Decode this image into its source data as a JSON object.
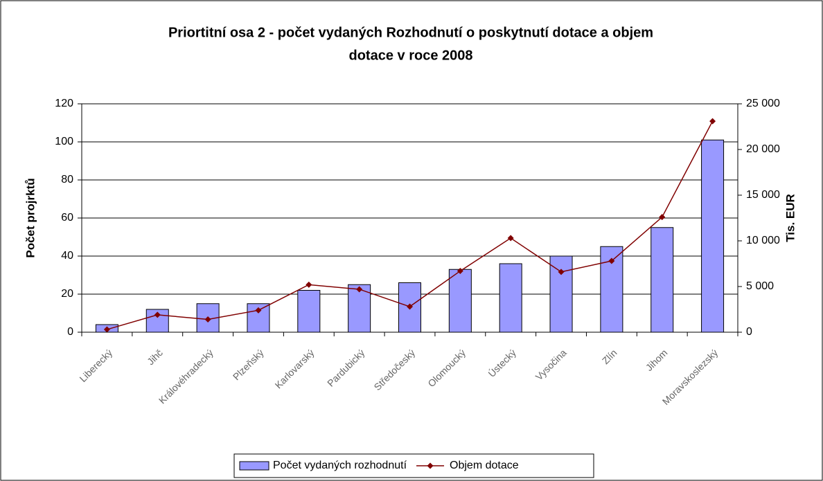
{
  "chart_data": {
    "type": "bar_line",
    "title": [
      "Priortitní osa 2 - počet vydaných Rozhodnutí o poskytnutí dotace a objem",
      "dotace v roce 2008"
    ],
    "ylabel": "Počet projrktů",
    "y2label": "Tis. EUR",
    "categories": [
      "Liberecký",
      "Jihč",
      "Královéhradecký",
      "Plzeňský",
      "Karlovarský",
      "Pardubický",
      "Středočeský",
      "Olomoucký",
      "Ústecký",
      "Vysočina",
      "Zlín",
      "Jihom",
      "Moravskoslezský"
    ],
    "series": [
      {
        "name": "Počet vydaných rozhodnutí",
        "type": "bar",
        "color": "#9999ff",
        "values": [
          4,
          12,
          15,
          15,
          22,
          25,
          26,
          33,
          36,
          40,
          45,
          55,
          101
        ]
      },
      {
        "name": "Objem dotace",
        "type": "line",
        "axis": "y2",
        "color": "#800000",
        "values": [
          300,
          1900,
          1400,
          2400,
          5200,
          4700,
          2800,
          6700,
          10300,
          6600,
          7800,
          12600,
          23100
        ]
      }
    ],
    "ylim": [
      0,
      120
    ],
    "yticks": [
      0,
      20,
      40,
      60,
      80,
      100,
      120
    ],
    "y2lim": [
      0,
      25000
    ],
    "y2ticks": [
      0,
      {
        "value": 5000,
        "label": "5 000"
      },
      {
        "value": 10000,
        "label": "10 000"
      },
      {
        "value": 15000,
        "label": "15 000"
      },
      {
        "value": 20000,
        "label": "20 000"
      },
      {
        "value": 25000,
        "label": "25 000"
      }
    ],
    "grid": true,
    "legend": "bottom"
  }
}
